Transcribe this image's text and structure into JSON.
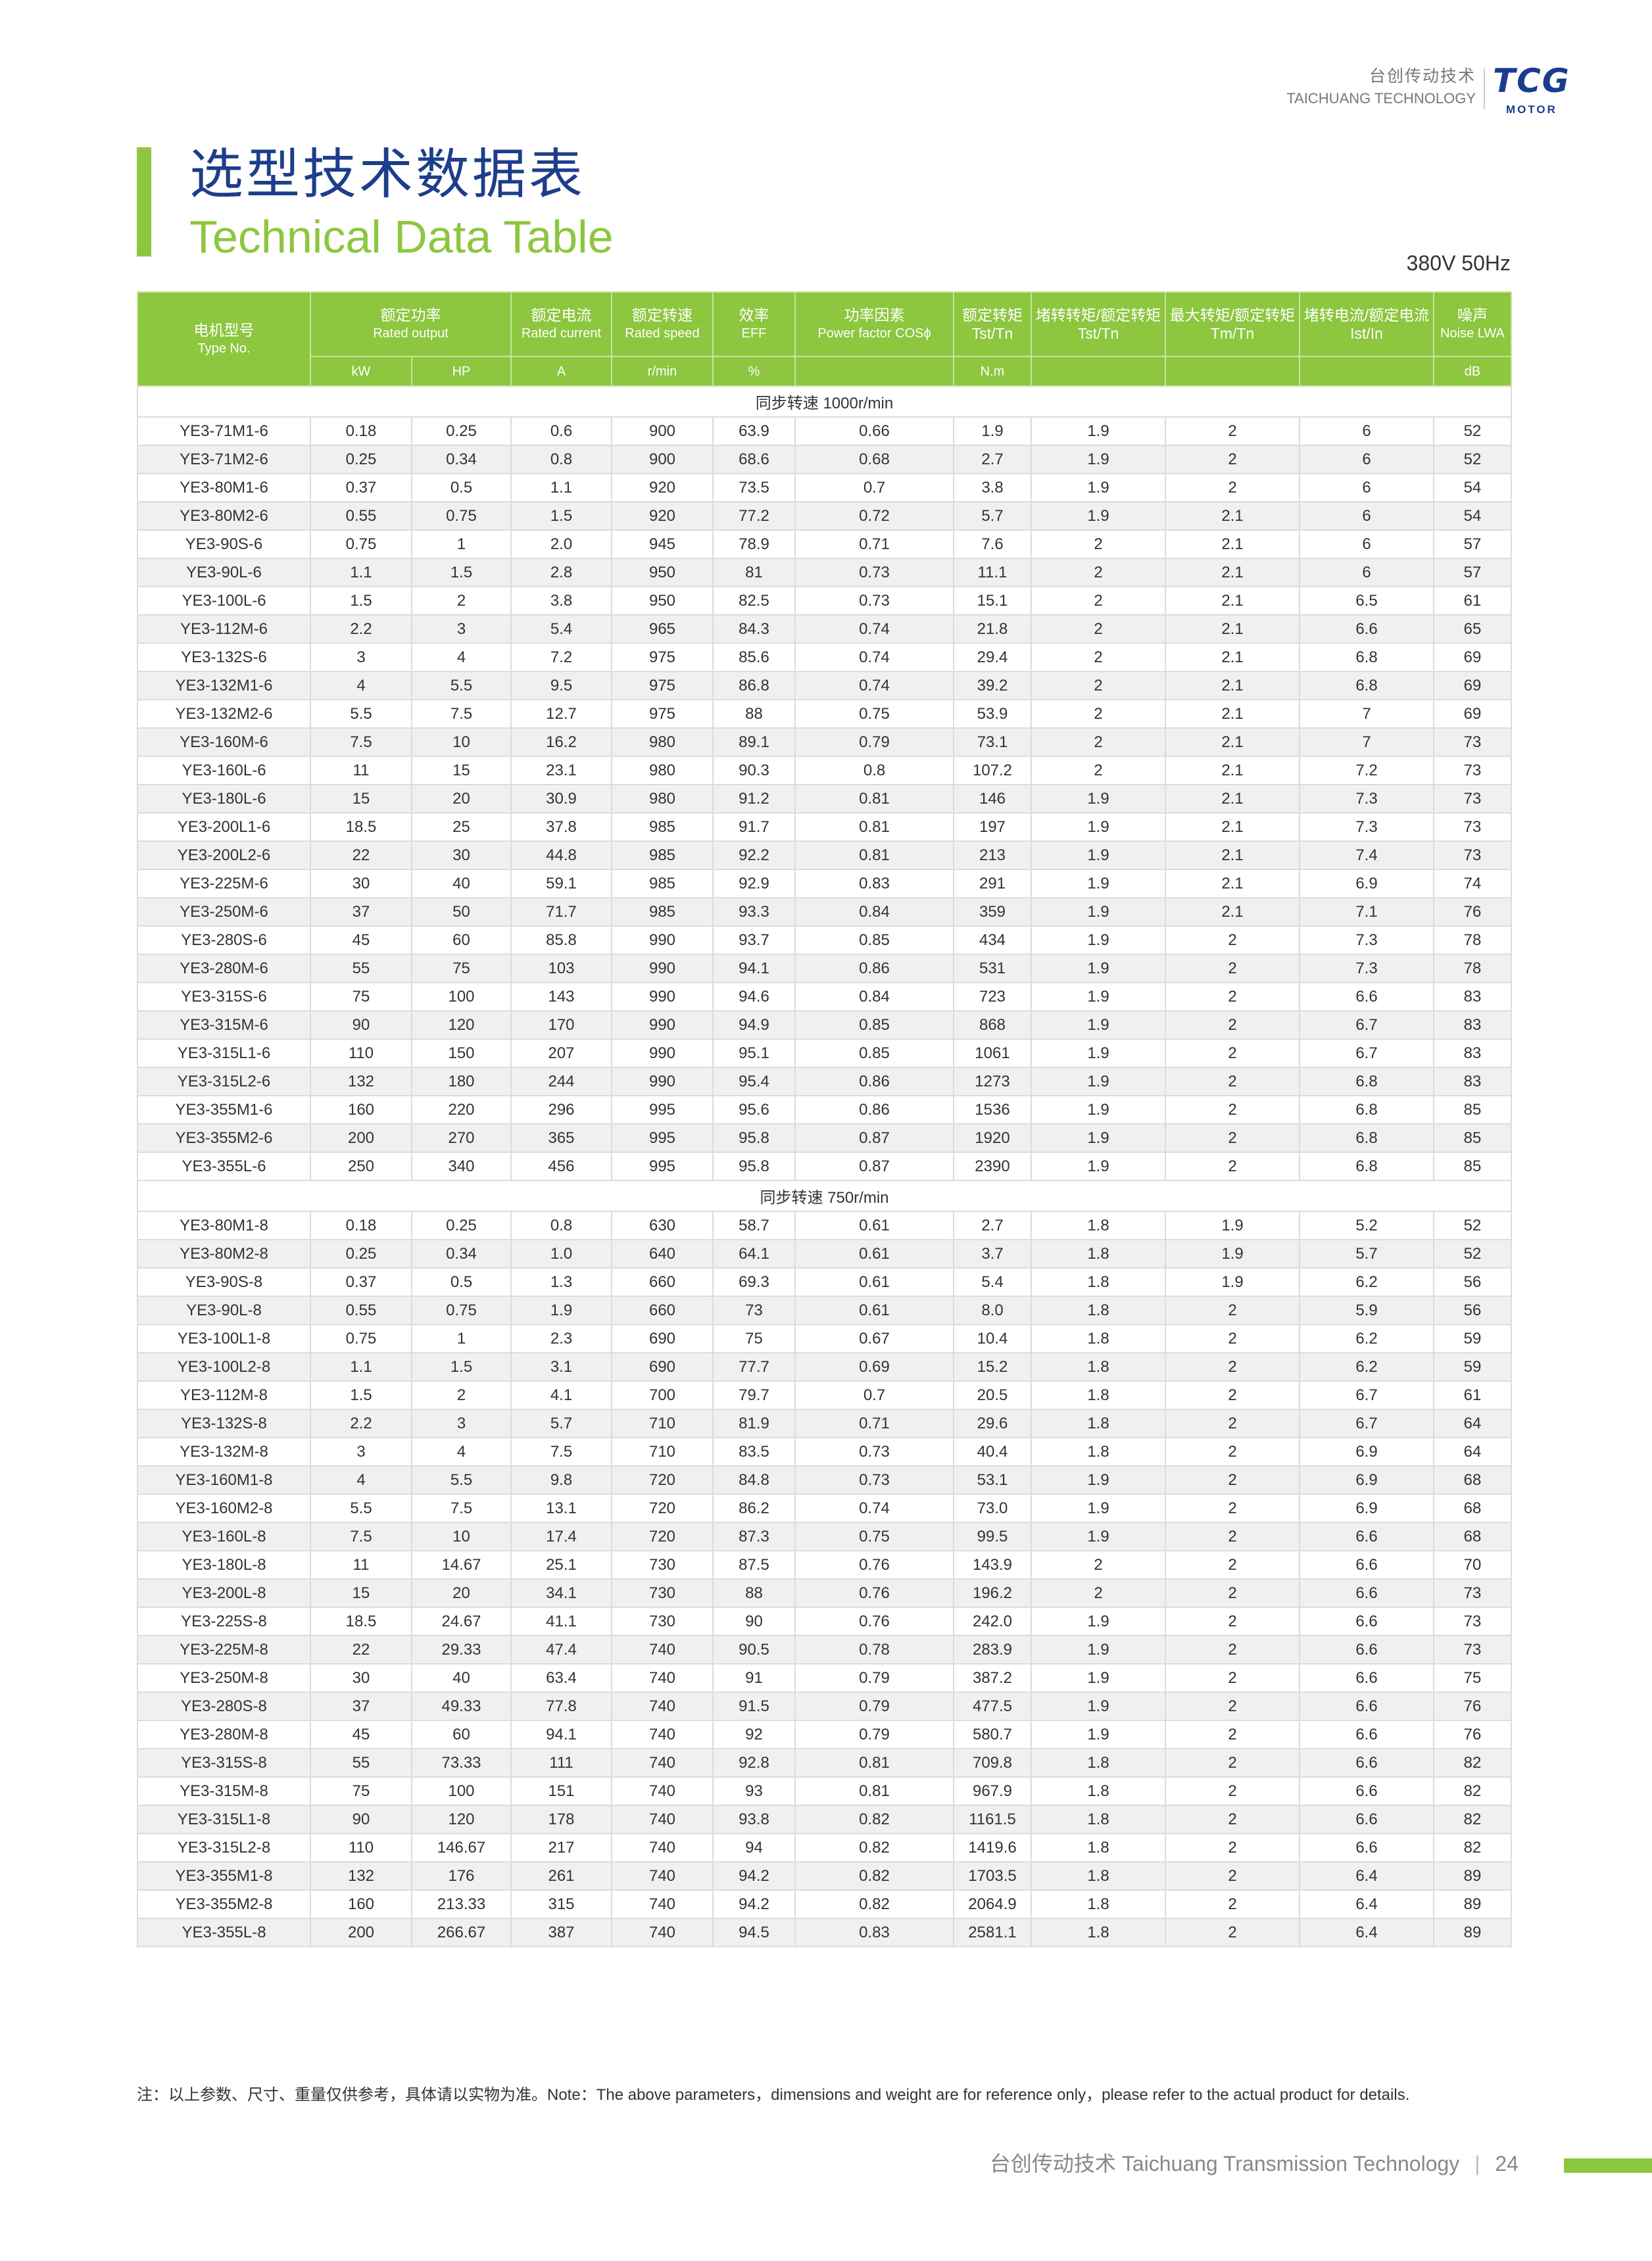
{
  "brand": {
    "cn": "台创传动技术",
    "en": "TAICHUANG TECHNOLOGY",
    "logo": "TCG",
    "logo_sub": "MOTOR"
  },
  "title": {
    "cn": "选型技术数据表",
    "en": "Technical Data Table",
    "spec": "380V 50Hz"
  },
  "colors": {
    "accent": "#8dc63f",
    "brand": "#1d3e8c"
  },
  "headers": {
    "type": [
      "电机型号",
      "Type No."
    ],
    "output": [
      "额定功率",
      "Rated output"
    ],
    "current": [
      "额定电流",
      "Rated current"
    ],
    "speed": [
      "额定转速",
      "Rated speed"
    ],
    "eff": [
      "效率",
      "EFF"
    ],
    "pf": [
      "功率因素",
      "Power factor COSϕ"
    ],
    "torque": [
      "额定转矩",
      "Tst/Tn"
    ],
    "tst": [
      "堵转转矩/额定转矩",
      "Tst/Tn"
    ],
    "tm": [
      "最大转矩/额定转矩",
      "Tm/Tn"
    ],
    "ist": [
      "堵转电流/额定电流",
      "Ist/In"
    ],
    "noise": [
      "噪声",
      "Noise LWA"
    ],
    "units": [
      "kW",
      "HP",
      "A",
      "r/min",
      "%",
      "",
      "N.m",
      "",
      "",
      "",
      "dB"
    ]
  },
  "sections": [
    {
      "label": "同步转速 1000r/min",
      "rows": [
        [
          "YE3-71M1-6",
          "0.18",
          "0.25",
          "0.6",
          "900",
          "63.9",
          "0.66",
          "1.9",
          "1.9",
          "2",
          "6",
          "52"
        ],
        [
          "YE3-71M2-6",
          "0.25",
          "0.34",
          "0.8",
          "900",
          "68.6",
          "0.68",
          "2.7",
          "1.9",
          "2",
          "6",
          "52"
        ],
        [
          "YE3-80M1-6",
          "0.37",
          "0.5",
          "1.1",
          "920",
          "73.5",
          "0.7",
          "3.8",
          "1.9",
          "2",
          "6",
          "54"
        ],
        [
          "YE3-80M2-6",
          "0.55",
          "0.75",
          "1.5",
          "920",
          "77.2",
          "0.72",
          "5.7",
          "1.9",
          "2.1",
          "6",
          "54"
        ],
        [
          "YE3-90S-6",
          "0.75",
          "1",
          "2.0",
          "945",
          "78.9",
          "0.71",
          "7.6",
          "2",
          "2.1",
          "6",
          "57"
        ],
        [
          "YE3-90L-6",
          "1.1",
          "1.5",
          "2.8",
          "950",
          "81",
          "0.73",
          "11.1",
          "2",
          "2.1",
          "6",
          "57"
        ],
        [
          "YE3-100L-6",
          "1.5",
          "2",
          "3.8",
          "950",
          "82.5",
          "0.73",
          "15.1",
          "2",
          "2.1",
          "6.5",
          "61"
        ],
        [
          "YE3-112M-6",
          "2.2",
          "3",
          "5.4",
          "965",
          "84.3",
          "0.74",
          "21.8",
          "2",
          "2.1",
          "6.6",
          "65"
        ],
        [
          "YE3-132S-6",
          "3",
          "4",
          "7.2",
          "975",
          "85.6",
          "0.74",
          "29.4",
          "2",
          "2.1",
          "6.8",
          "69"
        ],
        [
          "YE3-132M1-6",
          "4",
          "5.5",
          "9.5",
          "975",
          "86.8",
          "0.74",
          "39.2",
          "2",
          "2.1",
          "6.8",
          "69"
        ],
        [
          "YE3-132M2-6",
          "5.5",
          "7.5",
          "12.7",
          "975",
          "88",
          "0.75",
          "53.9",
          "2",
          "2.1",
          "7",
          "69"
        ],
        [
          "YE3-160M-6",
          "7.5",
          "10",
          "16.2",
          "980",
          "89.1",
          "0.79",
          "73.1",
          "2",
          "2.1",
          "7",
          "73"
        ],
        [
          "YE3-160L-6",
          "11",
          "15",
          "23.1",
          "980",
          "90.3",
          "0.8",
          "107.2",
          "2",
          "2.1",
          "7.2",
          "73"
        ],
        [
          "YE3-180L-6",
          "15",
          "20",
          "30.9",
          "980",
          "91.2",
          "0.81",
          "146",
          "1.9",
          "2.1",
          "7.3",
          "73"
        ],
        [
          "YE3-200L1-6",
          "18.5",
          "25",
          "37.8",
          "985",
          "91.7",
          "0.81",
          "197",
          "1.9",
          "2.1",
          "7.3",
          "73"
        ],
        [
          "YE3-200L2-6",
          "22",
          "30",
          "44.8",
          "985",
          "92.2",
          "0.81",
          "213",
          "1.9",
          "2.1",
          "7.4",
          "73"
        ],
        [
          "YE3-225M-6",
          "30",
          "40",
          "59.1",
          "985",
          "92.9",
          "0.83",
          "291",
          "1.9",
          "2.1",
          "6.9",
          "74"
        ],
        [
          "YE3-250M-6",
          "37",
          "50",
          "71.7",
          "985",
          "93.3",
          "0.84",
          "359",
          "1.9",
          "2.1",
          "7.1",
          "76"
        ],
        [
          "YE3-280S-6",
          "45",
          "60",
          "85.8",
          "990",
          "93.7",
          "0.85",
          "434",
          "1.9",
          "2",
          "7.3",
          "78"
        ],
        [
          "YE3-280M-6",
          "55",
          "75",
          "103",
          "990",
          "94.1",
          "0.86",
          "531",
          "1.9",
          "2",
          "7.3",
          "78"
        ],
        [
          "YE3-315S-6",
          "75",
          "100",
          "143",
          "990",
          "94.6",
          "0.84",
          "723",
          "1.9",
          "2",
          "6.6",
          "83"
        ],
        [
          "YE3-315M-6",
          "90",
          "120",
          "170",
          "990",
          "94.9",
          "0.85",
          "868",
          "1.9",
          "2",
          "6.7",
          "83"
        ],
        [
          "YE3-315L1-6",
          "110",
          "150",
          "207",
          "990",
          "95.1",
          "0.85",
          "1061",
          "1.9",
          "2",
          "6.7",
          "83"
        ],
        [
          "YE3-315L2-6",
          "132",
          "180",
          "244",
          "990",
          "95.4",
          "0.86",
          "1273",
          "1.9",
          "2",
          "6.8",
          "83"
        ],
        [
          "YE3-355M1-6",
          "160",
          "220",
          "296",
          "995",
          "95.6",
          "0.86",
          "1536",
          "1.9",
          "2",
          "6.8",
          "85"
        ],
        [
          "YE3-355M2-6",
          "200",
          "270",
          "365",
          "995",
          "95.8",
          "0.87",
          "1920",
          "1.9",
          "2",
          "6.8",
          "85"
        ],
        [
          "YE3-355L-6",
          "250",
          "340",
          "456",
          "995",
          "95.8",
          "0.87",
          "2390",
          "1.9",
          "2",
          "6.8",
          "85"
        ]
      ]
    },
    {
      "label": "同步转速 750r/min",
      "rows": [
        [
          "YE3-80M1-8",
          "0.18",
          "0.25",
          "0.8",
          "630",
          "58.7",
          "0.61",
          "2.7",
          "1.8",
          "1.9",
          "5.2",
          "52"
        ],
        [
          "YE3-80M2-8",
          "0.25",
          "0.34",
          "1.0",
          "640",
          "64.1",
          "0.61",
          "3.7",
          "1.8",
          "1.9",
          "5.7",
          "52"
        ],
        [
          "YE3-90S-8",
          "0.37",
          "0.5",
          "1.3",
          "660",
          "69.3",
          "0.61",
          "5.4",
          "1.8",
          "1.9",
          "6.2",
          "56"
        ],
        [
          "YE3-90L-8",
          "0.55",
          "0.75",
          "1.9",
          "660",
          "73",
          "0.61",
          "8.0",
          "1.8",
          "2",
          "5.9",
          "56"
        ],
        [
          "YE3-100L1-8",
          "0.75",
          "1",
          "2.3",
          "690",
          "75",
          "0.67",
          "10.4",
          "1.8",
          "2",
          "6.2",
          "59"
        ],
        [
          "YE3-100L2-8",
          "1.1",
          "1.5",
          "3.1",
          "690",
          "77.7",
          "0.69",
          "15.2",
          "1.8",
          "2",
          "6.2",
          "59"
        ],
        [
          "YE3-112M-8",
          "1.5",
          "2",
          "4.1",
          "700",
          "79.7",
          "0.7",
          "20.5",
          "1.8",
          "2",
          "6.7",
          "61"
        ],
        [
          "YE3-132S-8",
          "2.2",
          "3",
          "5.7",
          "710",
          "81.9",
          "0.71",
          "29.6",
          "1.8",
          "2",
          "6.7",
          "64"
        ],
        [
          "YE3-132M-8",
          "3",
          "4",
          "7.5",
          "710",
          "83.5",
          "0.73",
          "40.4",
          "1.8",
          "2",
          "6.9",
          "64"
        ],
        [
          "YE3-160M1-8",
          "4",
          "5.5",
          "9.8",
          "720",
          "84.8",
          "0.73",
          "53.1",
          "1.9",
          "2",
          "6.9",
          "68"
        ],
        [
          "YE3-160M2-8",
          "5.5",
          "7.5",
          "13.1",
          "720",
          "86.2",
          "0.74",
          "73.0",
          "1.9",
          "2",
          "6.9",
          "68"
        ],
        [
          "YE3-160L-8",
          "7.5",
          "10",
          "17.4",
          "720",
          "87.3",
          "0.75",
          "99.5",
          "1.9",
          "2",
          "6.6",
          "68"
        ],
        [
          "YE3-180L-8",
          "11",
          "14.67",
          "25.1",
          "730",
          "87.5",
          "0.76",
          "143.9",
          "2",
          "2",
          "6.6",
          "70"
        ],
        [
          "YE3-200L-8",
          "15",
          "20",
          "34.1",
          "730",
          "88",
          "0.76",
          "196.2",
          "2",
          "2",
          "6.6",
          "73"
        ],
        [
          "YE3-225S-8",
          "18.5",
          "24.67",
          "41.1",
          "730",
          "90",
          "0.76",
          "242.0",
          "1.9",
          "2",
          "6.6",
          "73"
        ],
        [
          "YE3-225M-8",
          "22",
          "29.33",
          "47.4",
          "740",
          "90.5",
          "0.78",
          "283.9",
          "1.9",
          "2",
          "6.6",
          "73"
        ],
        [
          "YE3-250M-8",
          "30",
          "40",
          "63.4",
          "740",
          "91",
          "0.79",
          "387.2",
          "1.9",
          "2",
          "6.6",
          "75"
        ],
        [
          "YE3-280S-8",
          "37",
          "49.33",
          "77.8",
          "740",
          "91.5",
          "0.79",
          "477.5",
          "1.9",
          "2",
          "6.6",
          "76"
        ],
        [
          "YE3-280M-8",
          "45",
          "60",
          "94.1",
          "740",
          "92",
          "0.79",
          "580.7",
          "1.9",
          "2",
          "6.6",
          "76"
        ],
        [
          "YE3-315S-8",
          "55",
          "73.33",
          "111",
          "740",
          "92.8",
          "0.81",
          "709.8",
          "1.8",
          "2",
          "6.6",
          "82"
        ],
        [
          "YE3-315M-8",
          "75",
          "100",
          "151",
          "740",
          "93",
          "0.81",
          "967.9",
          "1.8",
          "2",
          "6.6",
          "82"
        ],
        [
          "YE3-315L1-8",
          "90",
          "120",
          "178",
          "740",
          "93.8",
          "0.82",
          "1161.5",
          "1.8",
          "2",
          "6.6",
          "82"
        ],
        [
          "YE3-315L2-8",
          "110",
          "146.67",
          "217",
          "740",
          "94",
          "0.82",
          "1419.6",
          "1.8",
          "2",
          "6.6",
          "82"
        ],
        [
          "YE3-355M1-8",
          "132",
          "176",
          "261",
          "740",
          "94.2",
          "0.82",
          "1703.5",
          "1.8",
          "2",
          "6.4",
          "89"
        ],
        [
          "YE3-355M2-8",
          "160",
          "213.33",
          "315",
          "740",
          "94.2",
          "0.82",
          "2064.9",
          "1.8",
          "2",
          "6.4",
          "89"
        ],
        [
          "YE3-355L-8",
          "200",
          "266.67",
          "387",
          "740",
          "94.5",
          "0.83",
          "2581.1",
          "1.8",
          "2",
          "6.4",
          "89"
        ]
      ]
    }
  ],
  "note": "注：以上参数、尺寸、重量仅供参考，具体请以实物为准。Note：The above parameters，dimensions and weight are for reference only，please refer to the actual product for details.",
  "footer": {
    "text": "台创传动技术 Taichuang Transmission Technology",
    "sep": "|",
    "page": "24"
  }
}
